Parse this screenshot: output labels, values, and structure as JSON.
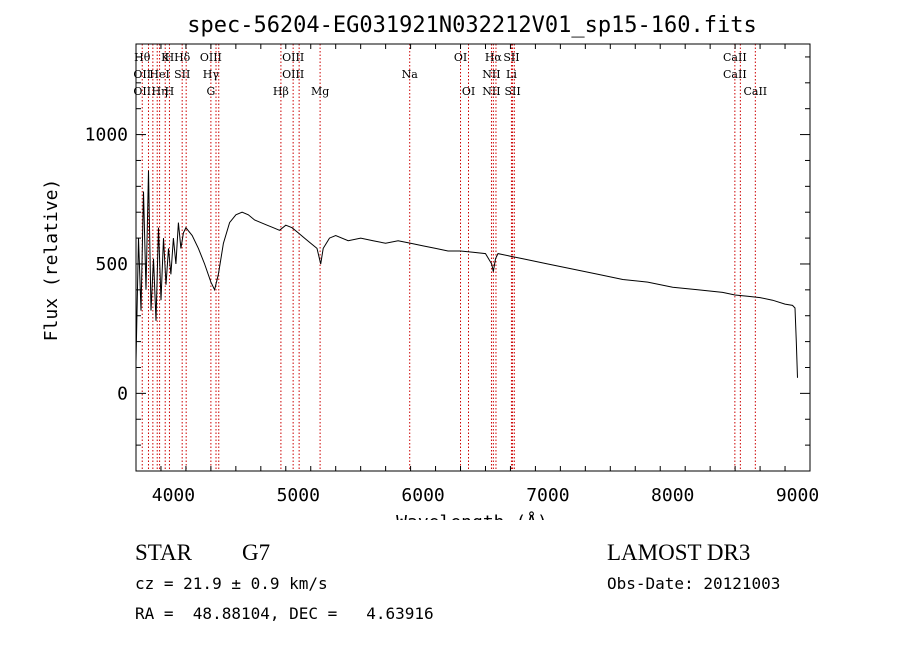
{
  "chart_data": {
    "type": "line",
    "title": "spec-56204-EG031921N032212V01_sp15-160.fits",
    "xlabel": "Wavelength (Å)",
    "ylabel": "Flux (relative)",
    "xlim": [
      3700,
      9100
    ],
    "ylim": [
      -300,
      1350
    ],
    "x_ticks": [
      4000,
      5000,
      6000,
      7000,
      8000,
      9000
    ],
    "x_tick_labels": [
      "4000",
      "5000",
      "6000",
      "7000",
      "8000",
      "9000"
    ],
    "y_ticks": [
      0,
      500,
      1000
    ],
    "y_tick_labels": [
      "0",
      "500",
      "1000"
    ],
    "series": [
      {
        "name": "spectrum",
        "x": [
          3700,
          3720,
          3740,
          3760,
          3780,
          3800,
          3820,
          3840,
          3860,
          3880,
          3900,
          3920,
          3940,
          3960,
          3980,
          4000,
          4020,
          4040,
          4060,
          4080,
          4100,
          4150,
          4200,
          4250,
          4300,
          4330,
          4360,
          4400,
          4450,
          4500,
          4550,
          4600,
          4650,
          4700,
          4750,
          4800,
          4850,
          4900,
          4950,
          5000,
          5050,
          5100,
          5150,
          5180,
          5200,
          5250,
          5300,
          5400,
          5500,
          5600,
          5700,
          5800,
          5900,
          6000,
          6100,
          6200,
          6300,
          6400,
          6500,
          6550,
          6563,
          6580,
          6600,
          6700,
          6800,
          6900,
          7000,
          7200,
          7400,
          7600,
          7800,
          8000,
          8200,
          8400,
          8500,
          8600,
          8700,
          8800,
          8900,
          8960,
          8980,
          8990,
          9000
        ],
        "y": [
          120,
          600,
          320,
          780,
          400,
          860,
          320,
          520,
          280,
          640,
          360,
          600,
          420,
          560,
          460,
          600,
          500,
          660,
          560,
          620,
          640,
          610,
          560,
          500,
          430,
          400,
          460,
          580,
          660,
          690,
          700,
          690,
          670,
          660,
          650,
          640,
          630,
          650,
          640,
          620,
          600,
          580,
          560,
          500,
          560,
          600,
          610,
          590,
          600,
          590,
          580,
          590,
          580,
          570,
          560,
          550,
          550,
          545,
          540,
          500,
          470,
          520,
          540,
          530,
          520,
          510,
          500,
          480,
          460,
          440,
          430,
          410,
          400,
          390,
          380,
          375,
          370,
          360,
          345,
          340,
          330,
          200,
          60
        ]
      }
    ],
    "lines": [
      {
        "x": 3750,
        "labels": [
          "Hθ",
          "OII",
          "OII"
        ]
      },
      {
        "x": 3800,
        "labels": [
          "",
          "",
          ""
        ]
      },
      {
        "x": 3835,
        "labels": [
          "",
          "",
          ""
        ]
      },
      {
        "x": 3870,
        "labels": [
          "",
          "",
          ""
        ]
      },
      {
        "x": 3889,
        "labels": [
          "",
          "HeI",
          "Hη"
        ]
      },
      {
        "x": 3934,
        "labels": [
          "K",
          "",
          ""
        ]
      },
      {
        "x": 3968,
        "labels": [
          "H",
          "",
          "H"
        ]
      },
      {
        "x": 4070,
        "labels": [
          "Hδ",
          "SII",
          ""
        ]
      },
      {
        "x": 4102,
        "labels": [
          "",
          "",
          ""
        ]
      },
      {
        "x": 4300,
        "labels": [
          "OIII",
          "Hγ",
          "G"
        ]
      },
      {
        "x": 4341,
        "labels": [
          "",
          "",
          ""
        ]
      },
      {
        "x": 4363,
        "labels": [
          "",
          "",
          ""
        ]
      },
      {
        "x": 4861,
        "labels": [
          "",
          "",
          "Hβ"
        ]
      },
      {
        "x": 4959,
        "labels": [
          "OIII",
          "OIII",
          ""
        ]
      },
      {
        "x": 5007,
        "labels": [
          "",
          "",
          ""
        ]
      },
      {
        "x": 5175,
        "labels": [
          "",
          "",
          "Mg"
        ]
      },
      {
        "x": 5893,
        "labels": [
          "",
          "Na",
          ""
        ]
      },
      {
        "x": 6300,
        "labels": [
          "OI",
          "",
          ""
        ]
      },
      {
        "x": 6364,
        "labels": [
          "",
          "",
          "OI"
        ]
      },
      {
        "x": 6548,
        "labels": [
          "",
          "NII",
          "NII"
        ]
      },
      {
        "x": 6563,
        "labels": [
          "Hα",
          "",
          ""
        ]
      },
      {
        "x": 6584,
        "labels": [
          "",
          "",
          ""
        ]
      },
      {
        "x": 6708,
        "labels": [
          "SII",
          "Li",
          ""
        ]
      },
      {
        "x": 6717,
        "labels": [
          "",
          "",
          "SII"
        ]
      },
      {
        "x": 6731,
        "labels": [
          "",
          "",
          ""
        ]
      },
      {
        "x": 8498,
        "labels": [
          "CaII",
          "CaII",
          ""
        ]
      },
      {
        "x": 8542,
        "labels": [
          "",
          "",
          ""
        ]
      },
      {
        "x": 8662,
        "labels": [
          "",
          "",
          "CaII"
        ]
      }
    ]
  },
  "info": {
    "object_type": "STAR",
    "subclass": "G7",
    "survey": "LAMOST DR3",
    "cz": "cz = 21.9 ± 0.9 km/s",
    "obs_date": "Obs-Date: 20121003",
    "coords": "RA =  48.88104, DEC =   4.63916"
  },
  "colors": {
    "spectrum": "#000000",
    "line_marker": "#cc0000",
    "axes": "#000000"
  }
}
